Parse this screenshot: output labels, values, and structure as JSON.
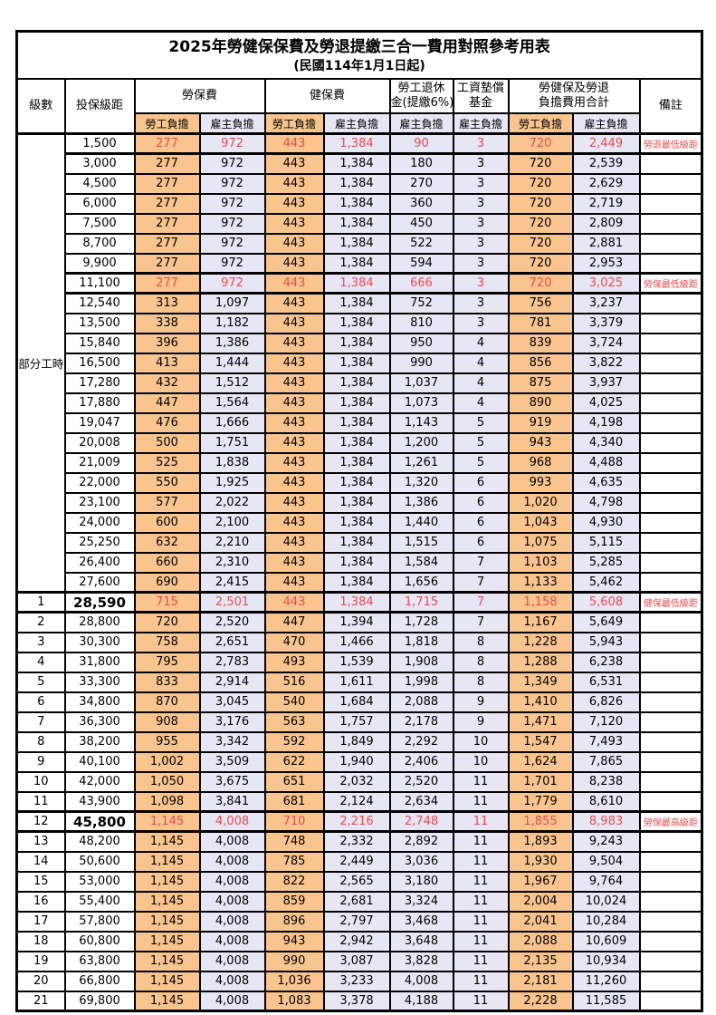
{
  "title": {
    "line1": "2025年勞健保保費及勞退提繳三合一費用對照參考用表",
    "line2": "(民國114年1月1日起)"
  },
  "colors": {
    "employee_bg": "#F9C48E",
    "employer_bg": "#E7E6F5",
    "highlight_text": "#E84C4C",
    "border": "#000000"
  },
  "header": {
    "level": "級數",
    "bracket": "投保級距",
    "labor": {
      "title": "勞保費",
      "emp": "勞工負擔",
      "er": "雇主負擔"
    },
    "health": {
      "title": "健保費",
      "emp": "勞工負擔",
      "er": "雇主負擔"
    },
    "pension": {
      "line1": "勞工退休",
      "line2": "金(提繳6%)",
      "er": "雇主負擔"
    },
    "fund": {
      "line1": "工資墊償",
      "line2": "基金",
      "er": "雇主負擔"
    },
    "total": {
      "line1": "勞健保及勞退",
      "line2": "負擔費用合計",
      "emp": "勞工負擔",
      "er": "雇主負擔"
    },
    "remark": "備註"
  },
  "group_label": "部分工時",
  "rows": [
    {
      "level": "",
      "bracket": "1,500",
      "values": [
        "277",
        "972",
        "443",
        "1,384",
        "90",
        "3",
        "720",
        "2,449"
      ],
      "remark": "勞退最低級距",
      "highlight": true,
      "big_bracket": false
    },
    {
      "level": "",
      "bracket": "3,000",
      "values": [
        "277",
        "972",
        "443",
        "1,384",
        "180",
        "3",
        "720",
        "2,539"
      ],
      "remark": "",
      "highlight": false,
      "big_bracket": false
    },
    {
      "level": "",
      "bracket": "4,500",
      "values": [
        "277",
        "972",
        "443",
        "1,384",
        "270",
        "3",
        "720",
        "2,629"
      ],
      "remark": "",
      "highlight": false,
      "big_bracket": false
    },
    {
      "level": "",
      "bracket": "6,000",
      "values": [
        "277",
        "972",
        "443",
        "1,384",
        "360",
        "3",
        "720",
        "2,719"
      ],
      "remark": "",
      "highlight": false,
      "big_bracket": false
    },
    {
      "level": "",
      "bracket": "7,500",
      "values": [
        "277",
        "972",
        "443",
        "1,384",
        "450",
        "3",
        "720",
        "2,809"
      ],
      "remark": "",
      "highlight": false,
      "big_bracket": false
    },
    {
      "level": "",
      "bracket": "8,700",
      "values": [
        "277",
        "972",
        "443",
        "1,384",
        "522",
        "3",
        "720",
        "2,881"
      ],
      "remark": "",
      "highlight": false,
      "big_bracket": false
    },
    {
      "level": "",
      "bracket": "9,900",
      "values": [
        "277",
        "972",
        "443",
        "1,384",
        "594",
        "3",
        "720",
        "2,953"
      ],
      "remark": "",
      "highlight": false,
      "big_bracket": false
    },
    {
      "level": "",
      "bracket": "11,100",
      "values": [
        "277",
        "972",
        "443",
        "1,384",
        "666",
        "3",
        "720",
        "3,025"
      ],
      "remark": "勞保最低級距",
      "highlight": true,
      "big_bracket": false
    },
    {
      "level": "",
      "bracket": "12,540",
      "values": [
        "313",
        "1,097",
        "443",
        "1,384",
        "752",
        "3",
        "756",
        "3,237"
      ],
      "remark": "",
      "highlight": false,
      "big_bracket": false
    },
    {
      "level": "",
      "bracket": "13,500",
      "values": [
        "338",
        "1,182",
        "443",
        "1,384",
        "810",
        "3",
        "781",
        "3,379"
      ],
      "remark": "",
      "highlight": false,
      "big_bracket": false
    },
    {
      "level": "",
      "bracket": "15,840",
      "values": [
        "396",
        "1,386",
        "443",
        "1,384",
        "950",
        "4",
        "839",
        "3,724"
      ],
      "remark": "",
      "highlight": false,
      "big_bracket": false
    },
    {
      "level": "",
      "bracket": "16,500",
      "values": [
        "413",
        "1,444",
        "443",
        "1,384",
        "990",
        "4",
        "856",
        "3,822"
      ],
      "remark": "",
      "highlight": false,
      "big_bracket": false
    },
    {
      "level": "",
      "bracket": "17,280",
      "values": [
        "432",
        "1,512",
        "443",
        "1,384",
        "1,037",
        "4",
        "875",
        "3,937"
      ],
      "remark": "",
      "highlight": false,
      "big_bracket": false
    },
    {
      "level": "",
      "bracket": "17,880",
      "values": [
        "447",
        "1,564",
        "443",
        "1,384",
        "1,073",
        "4",
        "890",
        "4,025"
      ],
      "remark": "",
      "highlight": false,
      "big_bracket": false
    },
    {
      "level": "",
      "bracket": "19,047",
      "values": [
        "476",
        "1,666",
        "443",
        "1,384",
        "1,143",
        "5",
        "919",
        "4,198"
      ],
      "remark": "",
      "highlight": false,
      "big_bracket": false
    },
    {
      "level": "",
      "bracket": "20,008",
      "values": [
        "500",
        "1,751",
        "443",
        "1,384",
        "1,200",
        "5",
        "943",
        "4,340"
      ],
      "remark": "",
      "highlight": false,
      "big_bracket": false
    },
    {
      "level": "",
      "bracket": "21,009",
      "values": [
        "525",
        "1,838",
        "443",
        "1,384",
        "1,261",
        "5",
        "968",
        "4,488"
      ],
      "remark": "",
      "highlight": false,
      "big_bracket": false
    },
    {
      "level": "",
      "bracket": "22,000",
      "values": [
        "550",
        "1,925",
        "443",
        "1,384",
        "1,320",
        "6",
        "993",
        "4,635"
      ],
      "remark": "",
      "highlight": false,
      "big_bracket": false
    },
    {
      "level": "",
      "bracket": "23,100",
      "values": [
        "577",
        "2,022",
        "443",
        "1,384",
        "1,386",
        "6",
        "1,020",
        "4,798"
      ],
      "remark": "",
      "highlight": false,
      "big_bracket": false
    },
    {
      "level": "",
      "bracket": "24,000",
      "values": [
        "600",
        "2,100",
        "443",
        "1,384",
        "1,440",
        "6",
        "1,043",
        "4,930"
      ],
      "remark": "",
      "highlight": false,
      "big_bracket": false
    },
    {
      "level": "",
      "bracket": "25,250",
      "values": [
        "632",
        "2,210",
        "443",
        "1,384",
        "1,515",
        "6",
        "1,075",
        "5,115"
      ],
      "remark": "",
      "highlight": false,
      "big_bracket": false
    },
    {
      "level": "",
      "bracket": "26,400",
      "values": [
        "660",
        "2,310",
        "443",
        "1,384",
        "1,584",
        "7",
        "1,103",
        "5,285"
      ],
      "remark": "",
      "highlight": false,
      "big_bracket": false
    },
    {
      "level": "",
      "bracket": "27,600",
      "values": [
        "690",
        "2,415",
        "443",
        "1,384",
        "1,656",
        "7",
        "1,133",
        "5,462"
      ],
      "remark": "",
      "highlight": false,
      "big_bracket": false
    },
    {
      "level": "1",
      "bracket": "28,590",
      "values": [
        "715",
        "2,501",
        "443",
        "1,384",
        "1,715",
        "7",
        "1,158",
        "5,608"
      ],
      "remark": "健保最低級距",
      "highlight": true,
      "big_bracket": true
    },
    {
      "level": "2",
      "bracket": "28,800",
      "values": [
        "720",
        "2,520",
        "447",
        "1,394",
        "1,728",
        "7",
        "1,167",
        "5,649"
      ],
      "remark": "",
      "highlight": false,
      "big_bracket": false
    },
    {
      "level": "3",
      "bracket": "30,300",
      "values": [
        "758",
        "2,651",
        "470",
        "1,466",
        "1,818",
        "8",
        "1,228",
        "5,943"
      ],
      "remark": "",
      "highlight": false,
      "big_bracket": false
    },
    {
      "level": "4",
      "bracket": "31,800",
      "values": [
        "795",
        "2,783",
        "493",
        "1,539",
        "1,908",
        "8",
        "1,288",
        "6,238"
      ],
      "remark": "",
      "highlight": false,
      "big_bracket": false
    },
    {
      "level": "5",
      "bracket": "33,300",
      "values": [
        "833",
        "2,914",
        "516",
        "1,611",
        "1,998",
        "8",
        "1,349",
        "6,531"
      ],
      "remark": "",
      "highlight": false,
      "big_bracket": false
    },
    {
      "level": "6",
      "bracket": "34,800",
      "values": [
        "870",
        "3,045",
        "540",
        "1,684",
        "2,088",
        "9",
        "1,410",
        "6,826"
      ],
      "remark": "",
      "highlight": false,
      "big_bracket": false
    },
    {
      "level": "7",
      "bracket": "36,300",
      "values": [
        "908",
        "3,176",
        "563",
        "1,757",
        "2,178",
        "9",
        "1,471",
        "7,120"
      ],
      "remark": "",
      "highlight": false,
      "big_bracket": false
    },
    {
      "level": "8",
      "bracket": "38,200",
      "values": [
        "955",
        "3,342",
        "592",
        "1,849",
        "2,292",
        "10",
        "1,547",
        "7,493"
      ],
      "remark": "",
      "highlight": false,
      "big_bracket": false
    },
    {
      "level": "9",
      "bracket": "40,100",
      "values": [
        "1,002",
        "3,509",
        "622",
        "1,940",
        "2,406",
        "10",
        "1,624",
        "7,865"
      ],
      "remark": "",
      "highlight": false,
      "big_bracket": false
    },
    {
      "level": "10",
      "bracket": "42,000",
      "values": [
        "1,050",
        "3,675",
        "651",
        "2,032",
        "2,520",
        "11",
        "1,701",
        "8,238"
      ],
      "remark": "",
      "highlight": false,
      "big_bracket": false
    },
    {
      "level": "11",
      "bracket": "43,900",
      "values": [
        "1,098",
        "3,841",
        "681",
        "2,124",
        "2,634",
        "11",
        "1,779",
        "8,610"
      ],
      "remark": "",
      "highlight": false,
      "big_bracket": false
    },
    {
      "level": "12",
      "bracket": "45,800",
      "values": [
        "1,145",
        "4,008",
        "710",
        "2,216",
        "2,748",
        "11",
        "1,855",
        "8,983"
      ],
      "remark": "勞保最高級距",
      "highlight": true,
      "big_bracket": true
    },
    {
      "level": "13",
      "bracket": "48,200",
      "values": [
        "1,145",
        "4,008",
        "748",
        "2,332",
        "2,892",
        "11",
        "1,893",
        "9,243"
      ],
      "remark": "",
      "highlight": false,
      "big_bracket": false
    },
    {
      "level": "14",
      "bracket": "50,600",
      "values": [
        "1,145",
        "4,008",
        "785",
        "2,449",
        "3,036",
        "11",
        "1,930",
        "9,504"
      ],
      "remark": "",
      "highlight": false,
      "big_bracket": false
    },
    {
      "level": "15",
      "bracket": "53,000",
      "values": [
        "1,145",
        "4,008",
        "822",
        "2,565",
        "3,180",
        "11",
        "1,967",
        "9,764"
      ],
      "remark": "",
      "highlight": false,
      "big_bracket": false
    },
    {
      "level": "16",
      "bracket": "55,400",
      "values": [
        "1,145",
        "4,008",
        "859",
        "2,681",
        "3,324",
        "11",
        "2,004",
        "10,024"
      ],
      "remark": "",
      "highlight": false,
      "big_bracket": false
    },
    {
      "level": "17",
      "bracket": "57,800",
      "values": [
        "1,145",
        "4,008",
        "896",
        "2,797",
        "3,468",
        "11",
        "2,041",
        "10,284"
      ],
      "remark": "",
      "highlight": false,
      "big_bracket": false
    },
    {
      "level": "18",
      "bracket": "60,800",
      "values": [
        "1,145",
        "4,008",
        "943",
        "2,942",
        "3,648",
        "11",
        "2,088",
        "10,609"
      ],
      "remark": "",
      "highlight": false,
      "big_bracket": false
    },
    {
      "level": "19",
      "bracket": "63,800",
      "values": [
        "1,145",
        "4,008",
        "990",
        "3,087",
        "3,828",
        "11",
        "2,135",
        "10,934"
      ],
      "remark": "",
      "highlight": false,
      "big_bracket": false
    },
    {
      "level": "20",
      "bracket": "66,800",
      "values": [
        "1,145",
        "4,008",
        "1,036",
        "3,233",
        "4,008",
        "11",
        "2,181",
        "11,260"
      ],
      "remark": "",
      "highlight": false,
      "big_bracket": false
    },
    {
      "level": "21",
      "bracket": "69,800",
      "values": [
        "1,145",
        "4,008",
        "1,083",
        "3,378",
        "4,188",
        "11",
        "2,228",
        "11,585"
      ],
      "remark": "",
      "highlight": false,
      "big_bracket": false
    }
  ]
}
